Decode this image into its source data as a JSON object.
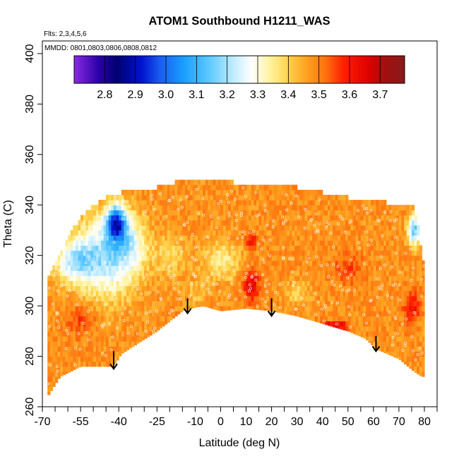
{
  "chart_data": {
    "type": "heatmap",
    "title": "ATOM1 Southbound H1211_WAS",
    "subtitle_flights": "Flts: 2,3,4,5,6",
    "subtitle_dates": "MMDD: 0801,0803,0806,0808,0812",
    "xlabel": "Latitude (deg N)",
    "ylabel": "Theta (C)",
    "xlim": [
      -70,
      85
    ],
    "ylim": [
      260,
      405
    ],
    "x_ticks_major": [
      -70,
      -55,
      -40,
      -25,
      -10,
      0,
      10,
      20,
      30,
      40,
      50,
      60,
      70,
      80
    ],
    "x_ticks_minor": [
      -65,
      -60,
      -50,
      -45,
      -35,
      -30,
      -20,
      -15,
      -5,
      5,
      15,
      25,
      35,
      45,
      55,
      65,
      75,
      85
    ],
    "y_ticks": [
      260,
      280,
      300,
      320,
      340,
      360,
      380,
      400
    ],
    "colorbar": {
      "min": 2.7,
      "max": 3.78,
      "ticks": [
        2.8,
        2.9,
        3.0,
        3.1,
        3.2,
        3.3,
        3.4,
        3.5,
        3.6,
        3.7
      ],
      "stops": [
        {
          "v": 2.7,
          "c": "#8a2be2"
        },
        {
          "v": 2.78,
          "c": "#2a00a8"
        },
        {
          "v": 2.84,
          "c": "#000070"
        },
        {
          "v": 2.92,
          "c": "#0012d0"
        },
        {
          "v": 2.98,
          "c": "#1a5cf0"
        },
        {
          "v": 3.06,
          "c": "#1aa0ff"
        },
        {
          "v": 3.14,
          "c": "#5cc8ff"
        },
        {
          "v": 3.22,
          "c": "#c0ecff"
        },
        {
          "v": 3.28,
          "c": "#ffffff"
        },
        {
          "v": 3.34,
          "c": "#fff3a0"
        },
        {
          "v": 3.4,
          "c": "#ffd24a"
        },
        {
          "v": 3.46,
          "c": "#ffa020"
        },
        {
          "v": 3.52,
          "c": "#ff7410"
        },
        {
          "v": 3.58,
          "c": "#ff2000"
        },
        {
          "v": 3.66,
          "c": "#e00000"
        },
        {
          "v": 3.72,
          "c": "#a01010"
        },
        {
          "v": 3.78,
          "c": "#8a1a1a"
        }
      ]
    },
    "ground_profile": [
      {
        "lat": -68,
        "theta": 264
      },
      {
        "lat": -63,
        "theta": 272
      },
      {
        "lat": -55,
        "theta": 276
      },
      {
        "lat": -47,
        "theta": 276
      },
      {
        "lat": -42,
        "theta": 276
      },
      {
        "lat": -39,
        "theta": 281
      },
      {
        "lat": -25,
        "theta": 290
      },
      {
        "lat": -15,
        "theta": 298
      },
      {
        "lat": -12,
        "theta": 299
      },
      {
        "lat": -7,
        "theta": 300
      },
      {
        "lat": 0,
        "theta": 298
      },
      {
        "lat": 10,
        "theta": 299
      },
      {
        "lat": 20,
        "theta": 298
      },
      {
        "lat": 30,
        "theta": 296
      },
      {
        "lat": 40,
        "theta": 293
      },
      {
        "lat": 50,
        "theta": 290
      },
      {
        "lat": 57,
        "theta": 287
      },
      {
        "lat": 61,
        "theta": 283
      },
      {
        "lat": 70,
        "theta": 279
      },
      {
        "lat": 76,
        "theta": 274
      },
      {
        "lat": 79,
        "theta": 272
      }
    ],
    "top_profile": [
      {
        "lat": -68,
        "theta": 311
      },
      {
        "lat": -63,
        "theta": 320
      },
      {
        "lat": -58,
        "theta": 330
      },
      {
        "lat": -55,
        "theta": 334
      },
      {
        "lat": -50,
        "theta": 339
      },
      {
        "lat": -43,
        "theta": 343
      },
      {
        "lat": -35,
        "theta": 345
      },
      {
        "lat": -25,
        "theta": 346
      },
      {
        "lat": -18,
        "theta": 348
      },
      {
        "lat": -10,
        "theta": 350
      },
      {
        "lat": -3,
        "theta": 350
      },
      {
        "lat": 5,
        "theta": 348
      },
      {
        "lat": 15,
        "theta": 348
      },
      {
        "lat": 25,
        "theta": 347
      },
      {
        "lat": 35,
        "theta": 345
      },
      {
        "lat": 45,
        "theta": 343
      },
      {
        "lat": 55,
        "theta": 341
      },
      {
        "lat": 65,
        "theta": 340
      },
      {
        "lat": 70,
        "theta": 339
      },
      {
        "lat": 76,
        "theta": 338
      },
      {
        "lat": 78,
        "theta": 330
      },
      {
        "lat": 79,
        "theta": 318
      },
      {
        "lat": 80,
        "theta": 290
      },
      {
        "lat": 80,
        "theta": 272
      }
    ],
    "field_background": 3.48,
    "anomalies": [
      {
        "lat": -41,
        "theta": 333,
        "value": 3.02,
        "spread": 4,
        "vspread": 7
      },
      {
        "lat": -45,
        "theta": 320,
        "value": 3.2,
        "spread": 12,
        "vspread": 16
      },
      {
        "lat": -58,
        "theta": 318,
        "value": 3.27,
        "spread": 8,
        "vspread": 8
      },
      {
        "lat": -35,
        "theta": 325,
        "value": 3.34,
        "spread": 6,
        "vspread": 10
      },
      {
        "lat": -20,
        "theta": 320,
        "value": 3.38,
        "spread": 6,
        "vspread": 8
      },
      {
        "lat": 0,
        "theta": 318,
        "value": 3.36,
        "spread": 8,
        "vspread": 8
      },
      {
        "lat": 76,
        "theta": 330,
        "value": 3.15,
        "spread": 2.5,
        "vspread": 6
      },
      {
        "lat": 12,
        "theta": 308,
        "value": 3.66,
        "spread": 3,
        "vspread": 6
      },
      {
        "lat": 12,
        "theta": 326,
        "value": 3.62,
        "spread": 2,
        "vspread": 3
      },
      {
        "lat": 75,
        "theta": 300,
        "value": 3.62,
        "spread": 3,
        "vspread": 6
      },
      {
        "lat": 45,
        "theta": 292,
        "value": 3.68,
        "spread": 5,
        "vspread": 2
      },
      {
        "lat": -55,
        "theta": 295,
        "value": 3.56,
        "spread": 6,
        "vspread": 6
      },
      {
        "lat": 50,
        "theta": 315,
        "value": 3.55,
        "spread": 6,
        "vspread": 6
      },
      {
        "lat": 30,
        "theta": 305,
        "value": 3.4,
        "spread": 5,
        "vspread": 5
      },
      {
        "lat": -10,
        "theta": 305,
        "value": 3.42,
        "spread": 4,
        "vspread": 5
      }
    ],
    "arrows": [
      {
        "lat": -42,
        "theta_top": 282,
        "theta_tip": 275
      },
      {
        "lat": -13,
        "theta_top": 303,
        "theta_tip": 297
      },
      {
        "lat": 20,
        "theta_top": 303,
        "theta_tip": 296
      },
      {
        "lat": 61,
        "theta_top": 288,
        "theta_tip": 282
      }
    ],
    "grid": false,
    "legend": "colorbar top-left inside plot"
  }
}
